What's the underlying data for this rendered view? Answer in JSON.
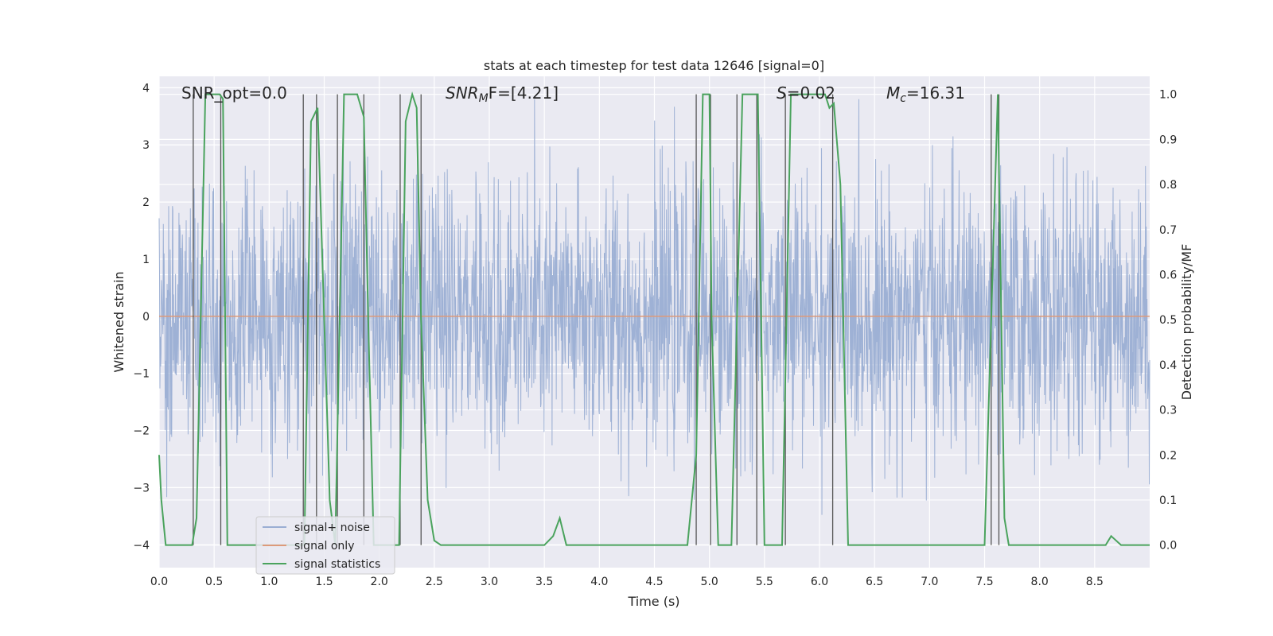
{
  "chart_data": {
    "type": "line",
    "title": "stats at each timestep for test data 12646 [signal=0]",
    "xlabel": "Time (s)",
    "ylabel_left": "Whitened strain",
    "ylabel_right": "Detection probability/MF",
    "xlim": [
      0.0,
      9.0
    ],
    "ylim_left": [
      -4.4,
      4.2
    ],
    "ylim_right": [
      -0.05,
      1.04
    ],
    "x_ticks": [
      "0.0",
      "0.5",
      "1.0",
      "1.5",
      "2.0",
      "2.5",
      "3.0",
      "3.5",
      "4.0",
      "4.5",
      "5.0",
      "5.5",
      "6.0",
      "6.5",
      "7.0",
      "7.5",
      "8.0",
      "8.5"
    ],
    "y_ticks_left": [
      "4",
      "3",
      "2",
      "1",
      "0",
      "−1",
      "−2",
      "−3",
      "−4"
    ],
    "y_ticks_right": [
      "1.0",
      "0.9",
      "0.8",
      "0.7",
      "0.6",
      "0.5",
      "0.4",
      "0.3",
      "0.2",
      "0.1",
      "0.0"
    ],
    "grid": true,
    "legend_position": "lower-left",
    "annotations": {
      "snr_opt": "SNR_opt=0.0",
      "snr_mf_label": "SNR",
      "snr_mf_sub": "M",
      "snr_mf_tail": "F=[4.21]",
      "s_label": "S",
      "s_tail": "=0.02",
      "mc_label": "M",
      "mc_sub": "c",
      "mc_tail": "=16.31"
    },
    "series": [
      {
        "name": "signal+ noise",
        "color": "#9aaed3",
        "description_range": [
          -3.8,
          3.8
        ],
        "axis": "left"
      },
      {
        "name": "signal only",
        "color": "#dd9a7a",
        "axis": "left",
        "x": [
          0.0,
          9.0
        ],
        "y": [
          0.0,
          0.0
        ]
      },
      {
        "name": "signal statistics",
        "color": "#4aa35d",
        "axis": "right",
        "x": [
          0.0,
          0.02,
          0.06,
          0.2,
          0.3,
          0.34,
          0.42,
          0.55,
          0.58,
          0.62,
          0.8,
          1.0,
          1.1,
          1.28,
          1.32,
          1.38,
          1.44,
          1.5,
          1.55,
          1.6,
          1.64,
          1.68,
          1.72,
          1.8,
          1.86,
          1.9,
          1.95,
          2.0,
          2.1,
          2.18,
          2.24,
          2.3,
          2.34,
          2.38,
          2.44,
          2.5,
          2.56,
          2.7,
          3.0,
          3.5,
          3.58,
          3.64,
          3.7,
          3.75,
          4.0,
          4.5,
          4.8,
          4.88,
          4.94,
          5.0,
          5.02,
          5.08,
          5.14,
          5.2,
          5.3,
          5.34,
          5.44,
          5.5,
          5.56,
          5.66,
          5.74,
          5.8,
          5.95,
          6.05,
          6.09,
          6.13,
          6.19,
          6.26,
          6.5,
          7.0,
          7.5,
          7.56,
          7.62,
          7.68,
          7.72,
          8.0,
          8.5,
          8.6,
          8.65,
          8.74,
          9.0
        ],
        "y": [
          0.2,
          0.1,
          0.0,
          0.0,
          0.0,
          0.06,
          1.0,
          1.0,
          0.99,
          0.0,
          0.0,
          0.0,
          0.0,
          0.0,
          0.0,
          0.94,
          0.97,
          0.5,
          0.1,
          0.0,
          0.5,
          1.0,
          1.0,
          1.0,
          0.95,
          0.5,
          0.0,
          0.0,
          0.0,
          0.0,
          0.94,
          1.0,
          0.97,
          0.5,
          0.1,
          0.01,
          0.0,
          0.0,
          0.0,
          0.0,
          0.02,
          0.06,
          0.0,
          0.0,
          0.0,
          0.0,
          0.0,
          0.2,
          1.0,
          1.0,
          0.5,
          0.0,
          0.0,
          0.0,
          1.0,
          1.0,
          1.0,
          0.0,
          0.0,
          0.0,
          1.0,
          1.0,
          1.0,
          1.0,
          0.97,
          0.98,
          0.8,
          0.0,
          0.0,
          0.0,
          0.0,
          0.5,
          1.0,
          0.06,
          0.0,
          0.0,
          0.0,
          0.0,
          0.02,
          0.0,
          0.0
        ]
      }
    ],
    "vertical_markers_x": [
      0.31,
      0.56,
      1.31,
      1.43,
      1.62,
      1.86,
      2.19,
      2.38,
      4.88,
      5.01,
      5.25,
      5.43,
      5.69,
      6.12,
      7.56,
      7.63
    ],
    "marker_color": "#555555"
  }
}
